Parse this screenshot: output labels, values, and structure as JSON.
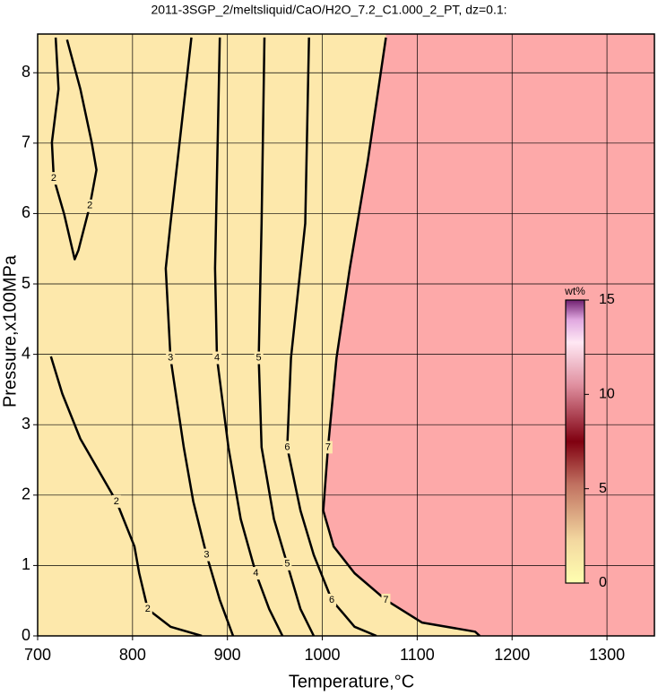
{
  "chart_data": {
    "type": "contour",
    "title": "2011-3SGP_2/meltsliquid/CaO/H2O_7.2_C1.000_2_PT, dz=0.1:",
    "x_label": "Temperature,°C",
    "y_label": "Pressure,x100MPa",
    "xlim": [
      700,
      1350
    ],
    "ylim": [
      0,
      8.55
    ],
    "xticks": [
      700,
      800,
      900,
      1000,
      1100,
      1200,
      1300
    ],
    "yticks": [
      0,
      1,
      2,
      3,
      4,
      5,
      6,
      7,
      8
    ],
    "grid": true,
    "background_color": "#fde8ab",
    "series": [
      {
        "name": "2",
        "color": "#000000",
        "x": [
          714,
          726,
          745,
          783,
          802,
          807,
          816,
          840,
          873
        ],
        "y": [
          3.97,
          3.44,
          2.8,
          1.91,
          1.27,
          0.89,
          0.38,
          0.13,
          0
        ]
      },
      {
        "name": "2",
        "color": "#000000",
        "x": [
          731,
          745,
          757,
          762,
          755,
          743,
          739,
          728,
          717,
          715,
          722,
          719
        ],
        "y": [
          8.47,
          7.77,
          7.01,
          6.62,
          6.11,
          5.48,
          5.35,
          5.99,
          6.5,
          7.01,
          7.77,
          8.5
        ]
      },
      {
        "name": "3",
        "color": "#000000",
        "x": [
          862,
          840,
          835,
          840,
          854,
          864,
          878,
          892,
          906
        ],
        "y": [
          8.5,
          5.86,
          5.22,
          3.95,
          2.68,
          1.91,
          1.15,
          0.51,
          0
        ]
      },
      {
        "name": "4",
        "color": "#000000",
        "x": [
          892,
          887,
          889,
          901,
          914,
          930,
          944,
          958
        ],
        "y": [
          8.5,
          5.22,
          3.95,
          2.68,
          1.66,
          0.89,
          0.38,
          0
        ]
      },
      {
        "name": "5",
        "color": "#000000",
        "x": [
          939,
          936,
          933,
          936,
          949,
          963,
          977,
          991
        ],
        "y": [
          8.5,
          5.86,
          3.95,
          2.68,
          1.66,
          1.02,
          0.38,
          0
        ]
      },
      {
        "name": "6",
        "color": "#000000",
        "x": [
          986,
          982,
          967,
          963,
          977,
          991,
          1010,
          1034,
          1057
        ],
        "y": [
          8.5,
          5.86,
          3.95,
          2.68,
          1.78,
          1.15,
          0.51,
          0.13,
          0
        ]
      },
      {
        "name": "7",
        "color": "#000000",
        "fill": "#fda9a9",
        "x": [
          1067,
          1048,
          1029,
          1015,
          1006,
          1001,
          1012,
          1034,
          1067,
          1105,
          1161,
          1166
        ],
        "y": [
          8.5,
          6.75,
          5.22,
          3.95,
          2.68,
          1.78,
          1.27,
          0.89,
          0.51,
          0.19,
          0.06,
          0
        ]
      }
    ],
    "colorbar": {
      "title": "wt%",
      "lim": [
        0,
        15
      ],
      "ticks": [
        0,
        5,
        10,
        15
      ]
    }
  }
}
